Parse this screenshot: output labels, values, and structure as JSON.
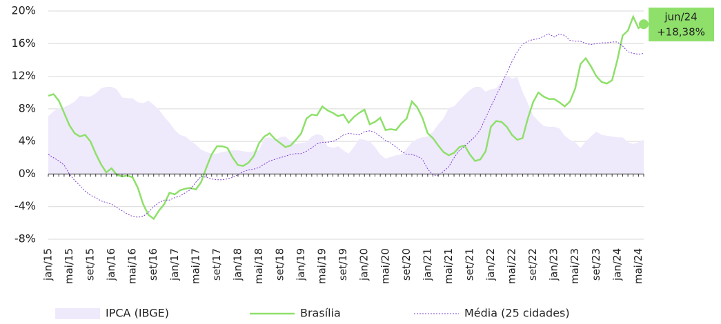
{
  "chart_data": {
    "type": "line",
    "categories": [
      "jan/15",
      null,
      null,
      null,
      "mai/15",
      null,
      null,
      null,
      "set/15",
      null,
      null,
      null,
      "jan/16",
      null,
      null,
      null,
      "mai/16",
      null,
      null,
      null,
      "set/16",
      null,
      null,
      null,
      "jan/17",
      null,
      null,
      null,
      "mai/17",
      null,
      null,
      null,
      "set/17",
      null,
      null,
      null,
      "jan/18",
      null,
      null,
      null,
      "mai/18",
      null,
      null,
      null,
      "set/18",
      null,
      null,
      null,
      "jan/19",
      null,
      null,
      null,
      "mai/19",
      null,
      null,
      null,
      "set/19",
      null,
      null,
      null,
      "jan/20",
      null,
      null,
      null,
      "mai/20",
      null,
      null,
      null,
      "set/20",
      null,
      null,
      null,
      "jan/21",
      null,
      null,
      null,
      "mai/21",
      null,
      null,
      null,
      "set/21",
      null,
      null,
      null,
      "jan/22",
      null,
      null,
      null,
      "mai/22",
      null,
      null,
      null,
      "set/22",
      null,
      null,
      null,
      "jan/23",
      null,
      null,
      null,
      "mai/23",
      null,
      null,
      null,
      "set/23",
      null,
      null,
      null,
      "jan/24",
      null,
      null,
      null,
      "mai/24",
      null
    ],
    "series": [
      {
        "name": "IPCA (IBGE)",
        "style": "area",
        "color": "#efe9fc",
        "values": [
          7.1,
          7.7,
          8.1,
          8.2,
          8.5,
          8.9,
          9.6,
          9.5,
          9.5,
          9.9,
          10.5,
          10.7,
          10.7,
          10.4,
          9.4,
          9.3,
          9.3,
          8.8,
          8.7,
          9.0,
          8.5,
          7.9,
          7.0,
          6.3,
          5.4,
          4.8,
          4.6,
          4.1,
          3.6,
          3.0,
          2.7,
          2.5,
          2.5,
          2.7,
          2.8,
          2.9,
          2.9,
          2.8,
          2.7,
          2.8,
          2.9,
          4.4,
          4.5,
          4.2,
          4.5,
          4.6,
          4.0,
          3.7,
          3.8,
          3.9,
          4.6,
          4.9,
          4.7,
          3.4,
          3.2,
          3.4,
          2.9,
          2.5,
          3.3,
          4.3,
          4.2,
          4.0,
          3.3,
          2.4,
          1.9,
          2.1,
          2.3,
          2.4,
          3.1,
          3.9,
          4.3,
          4.5,
          4.6,
          5.2,
          6.1,
          6.8,
          8.1,
          8.3,
          9.0,
          9.7,
          10.3,
          10.7,
          10.7,
          10.1,
          10.4,
          10.5,
          11.3,
          12.1,
          11.7,
          11.9,
          10.1,
          8.7,
          7.2,
          6.5,
          5.9,
          5.8,
          5.8,
          5.6,
          4.7,
          4.2,
          3.9,
          3.2,
          4.0,
          4.6,
          5.2,
          4.8,
          4.7,
          4.6,
          4.5,
          4.5,
          3.9,
          3.7,
          3.9,
          4.2
        ]
      },
      {
        "name": "Brasília",
        "style": "solid",
        "color": "#8ee06a",
        "values": [
          9.6,
          9.8,
          9.0,
          7.5,
          6.0,
          5.0,
          4.6,
          4.8,
          4.0,
          2.5,
          1.2,
          0.2,
          0.7,
          -0.1,
          -0.3,
          -0.2,
          -0.4,
          -1.7,
          -3.7,
          -5.0,
          -5.5,
          -4.5,
          -3.7,
          -2.3,
          -2.5,
          -2.0,
          -1.8,
          -1.7,
          -1.9,
          -1.0,
          0.8,
          2.4,
          3.4,
          3.4,
          3.2,
          2.0,
          1.1,
          1.0,
          1.4,
          2.2,
          3.8,
          4.6,
          5.0,
          4.3,
          3.8,
          3.3,
          3.5,
          4.2,
          5.0,
          6.8,
          7.3,
          7.2,
          8.3,
          7.8,
          7.5,
          7.1,
          7.3,
          6.3,
          7.0,
          7.5,
          7.9,
          6.1,
          6.4,
          6.9,
          5.4,
          5.5,
          5.4,
          6.2,
          6.8,
          8.9,
          8.2,
          6.9,
          5.0,
          4.4,
          3.5,
          2.7,
          2.3,
          2.6,
          3.3,
          3.5,
          2.4,
          1.6,
          1.8,
          2.8,
          5.8,
          6.5,
          6.4,
          5.8,
          4.8,
          4.2,
          4.4,
          6.8,
          8.8,
          10.0,
          9.5,
          9.2,
          9.2,
          8.8,
          8.3,
          8.9,
          10.5,
          13.5,
          14.2,
          13.2,
          12.0,
          11.3,
          11.1,
          11.5,
          14.0,
          17.0,
          17.6,
          19.3,
          17.9,
          18.38
        ]
      },
      {
        "name": "Média (25 cidades)",
        "style": "dashed",
        "color": "#7b3fd0",
        "values": [
          2.4,
          2.0,
          1.6,
          1.1,
          0.0,
          -0.8,
          -1.4,
          -2.1,
          -2.6,
          -2.9,
          -3.3,
          -3.5,
          -3.7,
          -4.1,
          -4.5,
          -4.9,
          -5.2,
          -5.3,
          -5.2,
          -4.7,
          -4.0,
          -3.5,
          -3.2,
          -3.2,
          -2.9,
          -2.7,
          -2.3,
          -1.9,
          -1.0,
          -0.3,
          -0.4,
          -0.6,
          -0.7,
          -0.7,
          -0.6,
          -0.4,
          -0.1,
          0.3,
          0.5,
          0.6,
          0.8,
          1.2,
          1.6,
          1.8,
          2.0,
          2.2,
          2.4,
          2.5,
          2.5,
          2.8,
          3.2,
          3.7,
          3.9,
          3.9,
          4.0,
          4.3,
          4.8,
          5.0,
          4.9,
          4.8,
          5.2,
          5.3,
          5.1,
          4.6,
          4.1,
          3.8,
          3.3,
          2.8,
          2.4,
          2.4,
          2.2,
          1.8,
          0.6,
          -0.1,
          -0.2,
          0.3,
          0.9,
          2.0,
          2.9,
          3.4,
          4.0,
          4.6,
          5.5,
          6.9,
          8.3,
          9.6,
          11.0,
          12.4,
          13.8,
          15.0,
          15.9,
          16.3,
          16.5,
          16.6,
          16.9,
          17.2,
          16.8,
          17.2,
          17.0,
          16.4,
          16.3,
          16.3,
          16.0,
          15.9,
          16.0,
          16.1,
          16.1,
          16.2,
          16.2,
          15.7,
          15.0,
          14.8,
          14.7,
          14.8
        ]
      }
    ],
    "ylim": [
      -8,
      20
    ],
    "yticks": [
      {
        "value": -8,
        "label": "-8%"
      },
      {
        "value": -4,
        "label": "-4%"
      },
      {
        "value": 0,
        "label": "0%"
      },
      {
        "value": 4,
        "label": "4%"
      },
      {
        "value": 8,
        "label": "8%"
      },
      {
        "value": 12,
        "label": "12%"
      },
      {
        "value": 16,
        "label": "16%"
      },
      {
        "value": 20,
        "label": "20%"
      }
    ],
    "grid": true,
    "annotation": [
      "jun/24",
      "+18,38%"
    ]
  }
}
